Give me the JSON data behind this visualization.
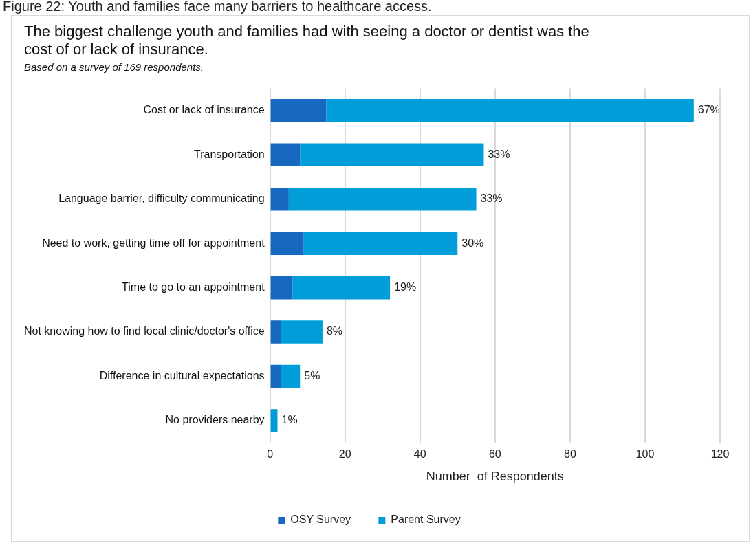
{
  "chart_data": {
    "type": "bar",
    "orientation": "horizontal",
    "stacked": true,
    "title": "The biggest challenge youth and families had with seeing a doctor or dentist was the cost of or lack of insurance.",
    "subtitle": "Based on a survey of 169 respondents.",
    "annotations": [
      "Figure 22: Youth and families face many barriers to healthcare access.",
      {
        "text": "67%",
        "x": 113,
        "y": "Cost or lack of insurance"
      },
      {
        "text": "33%",
        "x": 57,
        "y": "Transportation"
      },
      {
        "text": "33%",
        "x": 55,
        "y": "Language barrier, difficulty communicating"
      },
      {
        "text": "30%",
        "x": 50,
        "y": "Need to work, getting time off for appointment"
      },
      {
        "text": "19%",
        "x": 32,
        "y": "Time to go to an appointment"
      },
      {
        "text": "8%",
        "x": 14,
        "y": "Not knowing how to find local clinic/doctor's office"
      },
      {
        "text": "5%",
        "x": 8,
        "y": "Difference in cultural expectations"
      },
      {
        "text": "1%",
        "x": 2,
        "y": "No providers nearby"
      }
    ],
    "xlabel": "Number  of Respondents",
    "categories": [
      "Cost or lack of insurance",
      "Transportation",
      "Language barrier, difficulty communicating",
      "Need to work, getting time off for appointment",
      "Time to go to an appointment",
      "Not knowing how to find local clinic/doctor's office",
      "Difference in cultural expectations",
      "No providers nearby"
    ],
    "series": [
      {
        "name": "OSY Survey",
        "color": "#1668c1",
        "values": [
          15,
          8,
          5,
          9,
          6,
          3,
          3,
          0
        ]
      },
      {
        "name": "Parent Survey",
        "color": "#009dd9",
        "values": [
          98,
          49,
          50,
          41,
          26,
          11,
          5,
          2
        ]
      }
    ],
    "xlim": [
      0,
      120
    ],
    "xticks": [
      0,
      20,
      40,
      60,
      80,
      100,
      120
    ],
    "grid": "x",
    "legend": "bottom"
  }
}
